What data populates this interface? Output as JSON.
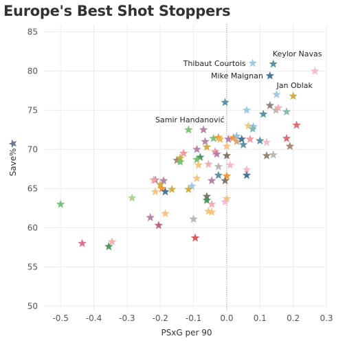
{
  "chart_data": {
    "type": "scatter",
    "title": "Europe's Best Shot Stoppers",
    "xlabel": "PSxG per 90",
    "ylabel": "Save%",
    "xlim": [
      -0.55,
      0.3
    ],
    "ylim": [
      49.5,
      86
    ],
    "xticks": [
      -0.5,
      -0.4,
      -0.3,
      -0.2,
      -0.1,
      0.0,
      0.1,
      0.2,
      0.3
    ],
    "xtick_labels": [
      "-0.5",
      "-0.4",
      "-0.3",
      "-0.2",
      "-0.1",
      "0.0",
      "0.1",
      "0.2",
      "0.3"
    ],
    "yticks": [
      50,
      55,
      60,
      65,
      70,
      75,
      80,
      85
    ],
    "ytick_labels": [
      "50",
      "55",
      "60",
      "65",
      "70",
      "75",
      "80",
      "85"
    ],
    "grid": true,
    "reference_line_x": 0,
    "marker": "star",
    "points": [
      {
        "x": 0.265,
        "y": 80.0,
        "color": "#f4b6c8"
      },
      {
        "x": 0.14,
        "y": 80.9,
        "color": "#4e8a9c"
      },
      {
        "x": 0.078,
        "y": 81.0,
        "color": "#99c4e0"
      },
      {
        "x": 0.13,
        "y": 79.4,
        "color": "#3b6a8e"
      },
      {
        "x": 0.2,
        "y": 76.8,
        "color": "#c9a93b"
      },
      {
        "x": -0.005,
        "y": 76.0,
        "color": "#4e8a9c"
      },
      {
        "x": 0.15,
        "y": 77.0,
        "color": "#99c4e0"
      },
      {
        "x": 0.13,
        "y": 75.6,
        "color": "#8c7a6b"
      },
      {
        "x": 0.148,
        "y": 75.0,
        "color": "#b8b0ac"
      },
      {
        "x": 0.155,
        "y": 75.3,
        "color": "#f2a7a7"
      },
      {
        "x": 0.18,
        "y": 74.8,
        "color": "#7fb5a9"
      },
      {
        "x": 0.06,
        "y": 75.0,
        "color": "#99c4e0"
      },
      {
        "x": 0.11,
        "y": 74.5,
        "color": "#4e8a9c"
      },
      {
        "x": 0.21,
        "y": 73.1,
        "color": "#d95f69"
      },
      {
        "x": 0.065,
        "y": 73.0,
        "color": "#f5c07a"
      },
      {
        "x": 0.08,
        "y": 72.9,
        "color": "#8dc1d6"
      },
      {
        "x": 0.078,
        "y": 72.6,
        "color": "#7fb5a9"
      },
      {
        "x": -0.115,
        "y": 72.5,
        "color": "#6cbf6c"
      },
      {
        "x": -0.07,
        "y": 72.5,
        "color": "#b07aa1"
      },
      {
        "x": -0.065,
        "y": 71.0,
        "color": "#b07aa1"
      },
      {
        "x": -0.04,
        "y": 71.4,
        "color": "#6cbf6c"
      },
      {
        "x": -0.025,
        "y": 71.5,
        "color": "#f28e2b"
      },
      {
        "x": -0.02,
        "y": 71.3,
        "color": "#e6b84f"
      },
      {
        "x": 0.005,
        "y": 71.3,
        "color": "#b07aa1"
      },
      {
        "x": 0.02,
        "y": 71.5,
        "color": "#f28e2b"
      },
      {
        "x": 0.03,
        "y": 71.7,
        "color": "#8dc1d6"
      },
      {
        "x": 0.03,
        "y": 71.0,
        "color": "#d9a06a"
      },
      {
        "x": 0.045,
        "y": 71.3,
        "color": "#3b6a8e"
      },
      {
        "x": 0.05,
        "y": 70.6,
        "color": "#4e8a9c"
      },
      {
        "x": 0.07,
        "y": 71.3,
        "color": "#f28e8e"
      },
      {
        "x": 0.1,
        "y": 71.1,
        "color": "#4e8a9c"
      },
      {
        "x": 0.12,
        "y": 70.9,
        "color": "#f5b5c4"
      },
      {
        "x": 0.18,
        "y": 71.4,
        "color": "#d95f69"
      },
      {
        "x": 0.19,
        "y": 70.4,
        "color": "#a67c6b"
      },
      {
        "x": -0.09,
        "y": 70.0,
        "color": "#b07aa1"
      },
      {
        "x": -0.08,
        "y": 69.0,
        "color": "#3f8f4f"
      },
      {
        "x": -0.06,
        "y": 70.3,
        "color": "#c9a93b"
      },
      {
        "x": -0.035,
        "y": 69.7,
        "color": "#f28e8e"
      },
      {
        "x": -0.03,
        "y": 69.4,
        "color": "#b07aa1"
      },
      {
        "x": 0.0,
        "y": 70.4,
        "color": "#f5c07a"
      },
      {
        "x": 0.0,
        "y": 69.2,
        "color": "#7a6a5b"
      },
      {
        "x": -0.13,
        "y": 69.5,
        "color": "#f28e8e"
      },
      {
        "x": -0.15,
        "y": 68.6,
        "color": "#a67c6b"
      },
      {
        "x": -0.14,
        "y": 68.9,
        "color": "#c9a93b"
      },
      {
        "x": -0.14,
        "y": 68.4,
        "color": "#6cbf6c"
      },
      {
        "x": -0.09,
        "y": 68.7,
        "color": "#6cbf6c"
      },
      {
        "x": -0.085,
        "y": 68.0,
        "color": "#f5c07a"
      },
      {
        "x": -0.055,
        "y": 68.1,
        "color": "#f2a7a7"
      },
      {
        "x": -0.025,
        "y": 67.8,
        "color": "#b8b0ac"
      },
      {
        "x": 0.01,
        "y": 68.0,
        "color": "#f5b5c4"
      },
      {
        "x": 0.06,
        "y": 67.4,
        "color": "#f5b5c4"
      },
      {
        "x": 0.12,
        "y": 69.2,
        "color": "#8c7a6b"
      },
      {
        "x": 0.14,
        "y": 69.3,
        "color": "#b8b0ac"
      },
      {
        "x": -0.025,
        "y": 66.7,
        "color": "#4e8a9c"
      },
      {
        "x": 0.0,
        "y": 66.6,
        "color": "#f28e2b"
      },
      {
        "x": 0.06,
        "y": 66.7,
        "color": "#3b6a8e"
      },
      {
        "x": -0.09,
        "y": 66.3,
        "color": "#f5c07a"
      },
      {
        "x": -0.045,
        "y": 66.0,
        "color": "#b07aa1"
      },
      {
        "x": -0.005,
        "y": 66.0,
        "color": "#7a6a5b"
      },
      {
        "x": -0.105,
        "y": 65.3,
        "color": "#99c4e0"
      },
      {
        "x": -0.215,
        "y": 66.1,
        "color": "#b07aa1"
      },
      {
        "x": -0.19,
        "y": 66.0,
        "color": "#b07aa1"
      },
      {
        "x": -0.22,
        "y": 66.1,
        "color": "#f2a7a7"
      },
      {
        "x": -0.2,
        "y": 65.5,
        "color": "#c9a93b"
      },
      {
        "x": -0.195,
        "y": 65.0,
        "color": "#f28e2b"
      },
      {
        "x": -0.215,
        "y": 64.6,
        "color": "#f5c07a"
      },
      {
        "x": -0.185,
        "y": 64.6,
        "color": "#3b6a8e"
      },
      {
        "x": -0.165,
        "y": 64.9,
        "color": "#c9a93b"
      },
      {
        "x": -0.115,
        "y": 64.9,
        "color": "#c9a93b"
      },
      {
        "x": -0.06,
        "y": 64.0,
        "color": "#7a6a5b"
      },
      {
        "x": -0.06,
        "y": 63.5,
        "color": "#3f8f4f"
      },
      {
        "x": 0.0,
        "y": 63.7,
        "color": "#f5c07a"
      },
      {
        "x": -0.005,
        "y": 63.3,
        "color": "#f5b5c4"
      },
      {
        "x": -0.045,
        "y": 63.0,
        "color": "#f2a7a7"
      },
      {
        "x": -0.5,
        "y": 63.0,
        "color": "#6cbf6c"
      },
      {
        "x": -0.285,
        "y": 63.8,
        "color": "#a8d08d"
      },
      {
        "x": -0.185,
        "y": 61.8,
        "color": "#f5c07a"
      },
      {
        "x": -0.055,
        "y": 62.1,
        "color": "#f5c07a"
      },
      {
        "x": -0.045,
        "y": 62.0,
        "color": "#f5c07a"
      },
      {
        "x": -0.1,
        "y": 61.1,
        "color": "#b8b0ac"
      },
      {
        "x": -0.23,
        "y": 61.3,
        "color": "#b07aa1"
      },
      {
        "x": -0.205,
        "y": 60.3,
        "color": "#b05a7a"
      },
      {
        "x": -0.095,
        "y": 58.7,
        "color": "#d94f4f"
      },
      {
        "x": -0.435,
        "y": 58.0,
        "color": "#d9688f"
      },
      {
        "x": -0.345,
        "y": 58.2,
        "color": "#f2a7a7"
      },
      {
        "x": -0.355,
        "y": 57.6,
        "color": "#3f8f4f"
      }
    ],
    "annotations": [
      {
        "text": "Keylor Navas",
        "x": 0.14,
        "y": 80.9
      },
      {
        "text": "Thibaut Courtois",
        "x": 0.078,
        "y": 81.0
      },
      {
        "text": "Mike Maignan",
        "x": 0.13,
        "y": 79.4
      },
      {
        "text": "Jan Oblak",
        "x": 0.2,
        "y": 76.8
      },
      {
        "text": "Samir Handanović",
        "x": -0.115,
        "y": 72.5
      }
    ]
  }
}
